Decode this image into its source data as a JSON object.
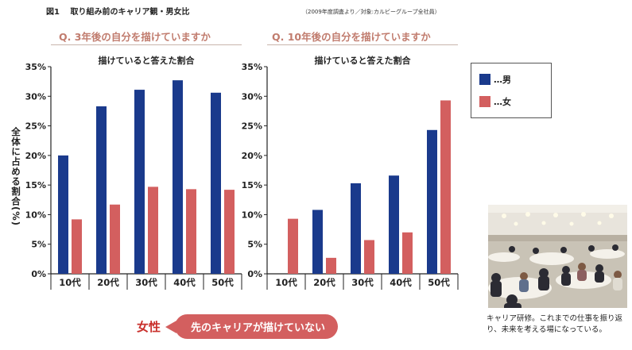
{
  "figure_label": "図1",
  "figure_title": "取り組み前のキャリア観・男女比",
  "source_note": "（2009年度調査より／対象:カルビーグループ全社員）",
  "y_axis_label": "全体に占める割合(%)",
  "legend": {
    "male_label": "…男",
    "female_label": "…女",
    "male_color": "#1a3a8c",
    "female_color": "#d35f5f"
  },
  "callout": {
    "female_label": "女性",
    "message": "先のキャリアが描けていない"
  },
  "photo": {
    "caption": "キャリア研修。これまでの仕事を振り返り、未来を考える場になっている。"
  },
  "chart_data": [
    {
      "type": "bar",
      "question": "Q. 3年後の自分を描けていますか",
      "title": "描けていると答えた割合",
      "categories": [
        "10代",
        "20代",
        "30代",
        "40代",
        "50代"
      ],
      "series": [
        {
          "name": "男",
          "values": [
            20.0,
            28.3,
            31.1,
            32.7,
            30.6
          ]
        },
        {
          "name": "女",
          "values": [
            9.2,
            11.7,
            14.7,
            14.3,
            14.2
          ]
        }
      ],
      "ylim": [
        0,
        35
      ],
      "yticks": [
        "0%",
        "5%",
        "10%",
        "15%",
        "20%",
        "25%",
        "30%",
        "35%"
      ],
      "ylabel": "全体に占める割合(%)",
      "legend_position": "right",
      "grid": false
    },
    {
      "type": "bar",
      "question": "Q. 10年後の自分を描けていますか",
      "title": "描けていると答えた割合",
      "categories": [
        "10代",
        "20代",
        "30代",
        "40代",
        "50代"
      ],
      "series": [
        {
          "name": "男",
          "values": [
            0,
            10.8,
            15.3,
            16.6,
            24.3
          ]
        },
        {
          "name": "女",
          "values": [
            9.3,
            2.7,
            5.7,
            7.0,
            29.3
          ]
        }
      ],
      "ylim": [
        0,
        35
      ],
      "yticks": [
        "0%",
        "5%",
        "10%",
        "15%",
        "20%",
        "25%",
        "30%",
        "35%"
      ],
      "legend_position": "right",
      "grid": false
    }
  ]
}
